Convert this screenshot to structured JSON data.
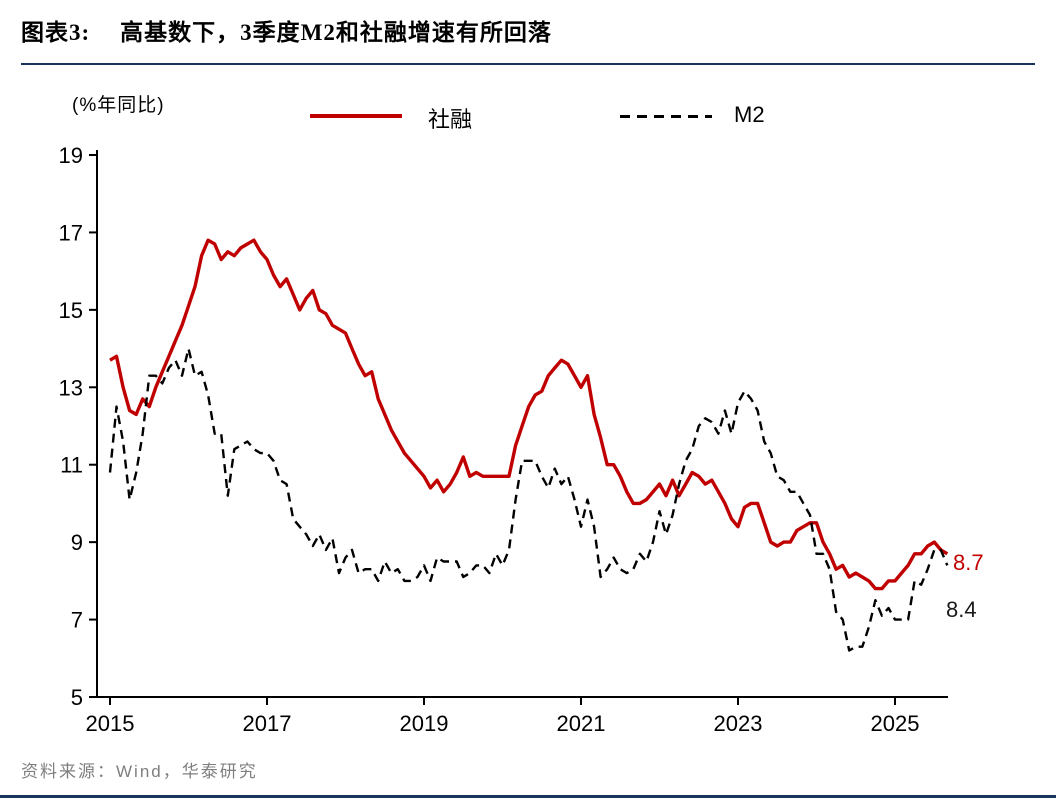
{
  "figure": {
    "label": "图表3:",
    "title": "高基数下，3季度M2和社融增速有所回落"
  },
  "footer": {
    "source": "资料来源：Wind，华泰研究"
  },
  "colors": {
    "series_red": "#C00000",
    "series_black": "#000000",
    "rule_navy": "#17375E",
    "footer_gray": "#7f7f7f"
  },
  "chart_data": {
    "type": "line",
    "title": "高基数下，3季度M2和社融增速有所回落",
    "unit_label": "(%年同比)",
    "xlabel": "",
    "ylabel": "(%年同比)",
    "ylim": [
      5,
      19
    ],
    "yticks": [
      5,
      7,
      9,
      11,
      13,
      15,
      17,
      19
    ],
    "xticks": [
      2015,
      2017,
      2019,
      2021,
      2023,
      2025
    ],
    "x_start": "2015-01",
    "x_frequency": "monthly",
    "grid": false,
    "legend_position": "top",
    "series": [
      {
        "name": "社融",
        "color": "#C00000",
        "line_style": "solid",
        "end_label": "8.7",
        "values": [
          13.7,
          13.8,
          13.0,
          12.4,
          12.3,
          12.7,
          12.5,
          13.0,
          13.4,
          13.8,
          14.2,
          14.6,
          15.1,
          15.6,
          16.4,
          16.8,
          16.7,
          16.3,
          16.5,
          16.4,
          16.6,
          16.7,
          16.8,
          16.5,
          16.3,
          15.9,
          15.6,
          15.8,
          15.4,
          15.0,
          15.3,
          15.5,
          15.0,
          14.9,
          14.6,
          14.5,
          14.4,
          14.0,
          13.6,
          13.3,
          13.4,
          12.7,
          12.3,
          11.9,
          11.6,
          11.3,
          11.1,
          10.9,
          10.7,
          10.4,
          10.6,
          10.3,
          10.5,
          10.8,
          11.2,
          10.7,
          10.8,
          10.7,
          10.7,
          10.7,
          10.7,
          10.7,
          11.5,
          12.0,
          12.5,
          12.8,
          12.9,
          13.3,
          13.5,
          13.7,
          13.6,
          13.3,
          13.0,
          13.3,
          12.3,
          11.7,
          11.0,
          11.0,
          10.7,
          10.3,
          10.0,
          10.0,
          10.1,
          10.3,
          10.5,
          10.2,
          10.6,
          10.2,
          10.5,
          10.8,
          10.7,
          10.5,
          10.6,
          10.3,
          10.0,
          9.6,
          9.4,
          9.9,
          10.0,
          10.0,
          9.5,
          9.0,
          8.9,
          9.0,
          9.0,
          9.3,
          9.4,
          9.5,
          9.5,
          9.0,
          8.7,
          8.3,
          8.4,
          8.1,
          8.2,
          8.1,
          8.0,
          7.8,
          7.8,
          8.0,
          8.0,
          8.2,
          8.4,
          8.7,
          8.7,
          8.9,
          9.0,
          8.8,
          8.7
        ]
      },
      {
        "name": "M2",
        "color": "#000000",
        "line_style": "dashed",
        "end_label": "8.4",
        "values": [
          10.8,
          12.5,
          11.6,
          10.1,
          10.8,
          11.8,
          13.3,
          13.3,
          13.1,
          13.5,
          13.7,
          13.3,
          14.0,
          13.3,
          13.4,
          12.8,
          11.8,
          11.8,
          10.2,
          11.4,
          11.5,
          11.6,
          11.4,
          11.3,
          11.3,
          11.1,
          10.6,
          10.5,
          9.6,
          9.4,
          9.2,
          8.9,
          9.2,
          8.8,
          9.1,
          8.2,
          8.6,
          8.8,
          8.2,
          8.3,
          8.3,
          8.0,
          8.5,
          8.2,
          8.3,
          8.0,
          8.0,
          8.1,
          8.4,
          8.0,
          8.6,
          8.5,
          8.5,
          8.5,
          8.1,
          8.2,
          8.4,
          8.4,
          8.2,
          8.7,
          8.4,
          8.8,
          10.1,
          11.1,
          11.1,
          11.1,
          10.7,
          10.4,
          10.9,
          10.5,
          10.7,
          10.1,
          9.4,
          10.1,
          9.4,
          8.1,
          8.3,
          8.6,
          8.3,
          8.2,
          8.3,
          8.7,
          8.5,
          9.0,
          9.8,
          9.2,
          9.7,
          10.5,
          11.1,
          11.4,
          12.0,
          12.2,
          12.1,
          11.8,
          12.4,
          11.8,
          12.6,
          12.9,
          12.7,
          12.4,
          11.6,
          11.3,
          10.7,
          10.6,
          10.3,
          10.3,
          10.0,
          9.7,
          8.7,
          8.7,
          8.3,
          7.2,
          7.0,
          6.2,
          6.3,
          6.3,
          6.8,
          7.5,
          7.1,
          7.3,
          7.0,
          7.0,
          7.0,
          8.0,
          7.9,
          8.3,
          8.8,
          8.8,
          8.4
        ]
      }
    ]
  }
}
